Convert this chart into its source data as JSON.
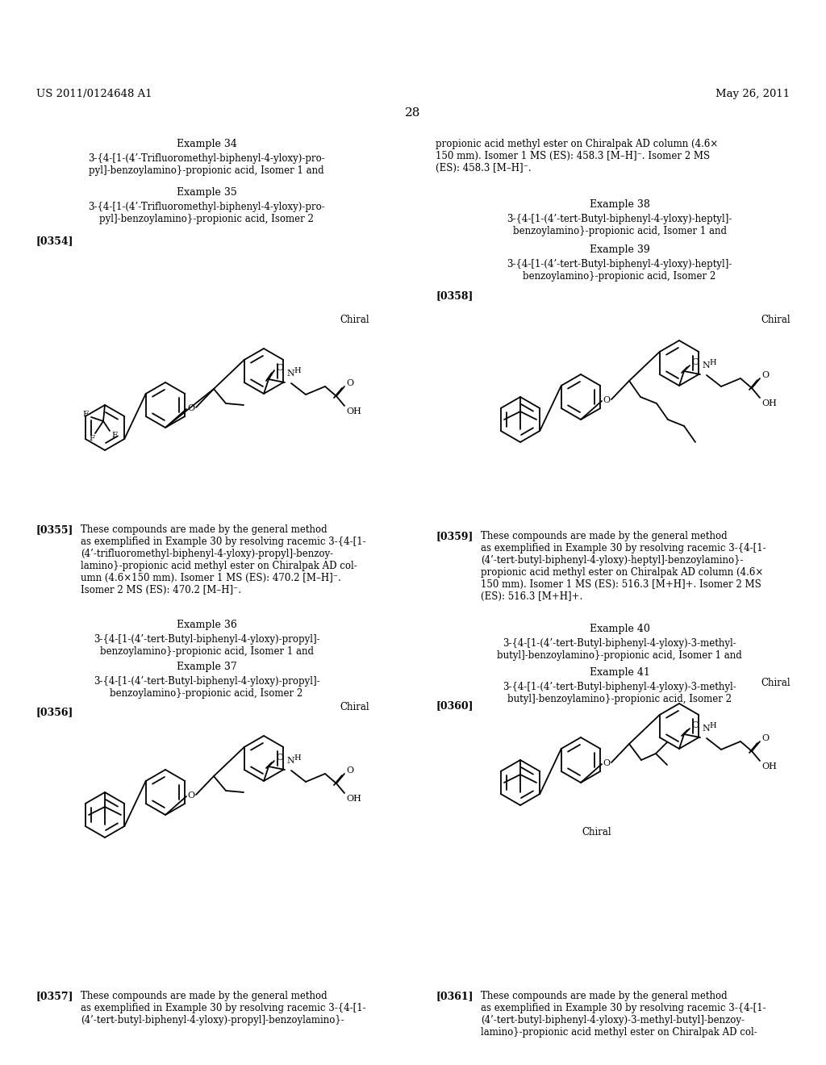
{
  "bg_color": "#ffffff",
  "header_left": "US 2011/0124648 A1",
  "header_right": "May 26, 2011",
  "page_number": "28",
  "left_col": {
    "example34_title": "Example 34",
    "example34_text": "3-{4-[1-(4’-Trifluoromethyl-biphenyl-4-yloxy)-pro-\npyl]-benzoylamino}-propionic acid, Isomer 1 and",
    "example35_title": "Example 35",
    "example35_text": "3-{4-[1-(4’-Trifluoromethyl-biphenyl-4-yloxy)-pro-\npyl]-benzoylamino}-propionic acid, Isomer 2",
    "ref0354": "[0354]",
    "chiral1": "Chiral",
    "para0355_label": "[0355]",
    "para0355_text": "These compounds are made by the general method\nas exemplified in Example 30 by resolving racemic 3-{4-[1-\n(4’-trifluoromethyl-biphenyl-4-yloxy)-propyl]-benzoy-\nlamino}-propionic acid methyl ester on Chiralpak AD col-\numn (4.6×150 mm). Isomer 1 MS (ES): 470.2 [M–H]⁻.\nIsomer 2 MS (ES): 470.2 [M–H]⁻.",
    "example36_title": "Example 36",
    "example36_text": "3-{4-[1-(4’-tert-Butyl-biphenyl-4-yloxy)-propyl]-\nbenzoylamino}-propionic acid, Isomer 1 and",
    "example37_title": "Example 37",
    "example37_text": "3-{4-[1-(4’-tert-Butyl-biphenyl-4-yloxy)-propyl]-\nbenzoylamino}-propionic acid, Isomer 2",
    "ref0356": "[0356]",
    "chiral2": "Chiral",
    "para0357_label": "[0357]",
    "para0357_text": "These compounds are made by the general method\nas exemplified in Example 30 by resolving racemic 3-{4-[1-\n(4’-tert-butyl-biphenyl-4-yloxy)-propyl]-benzoylamino}-"
  },
  "right_col": {
    "para_top_text": "propionic acid methyl ester on Chiralpak AD column (4.6×\n150 mm). Isomer 1 MS (ES): 458.3 [M–H]⁻. Isomer 2 MS\n(ES): 458.3 [M–H]⁻.",
    "example38_title": "Example 38",
    "example38_text": "3-{4-[1-(4’-tert-Butyl-biphenyl-4-yloxy)-heptyl]-\nbenzoylamino}-propionic acid, Isomer 1 and",
    "example39_title": "Example 39",
    "example39_text": "3-{4-[1-(4’-tert-Butyl-biphenyl-4-yloxy)-heptyl]-\nbenzoylamino}-propionic acid, Isomer 2",
    "ref0358": "[0358]",
    "chiral3": "Chiral",
    "para0359_label": "[0359]",
    "para0359_text": "These compounds are made by the general method\nas exemplified in Example 30 by resolving racemic 3-{4-[1-\n(4’-tert-butyl-biphenyl-4-yloxy)-heptyl]-benzoylamino}-\npropionic acid methyl ester on Chiralpak AD column (4.6×\n150 mm). Isomer 1 MS (ES): 516.3 [M+H]+. Isomer 2 MS\n(ES): 516.3 [M+H]+.",
    "example40_title": "Example 40",
    "example40_text": "3-{4-[1-(4’-tert-Butyl-biphenyl-4-yloxy)-3-methyl-\nbutyl]-benzoylamino}-propionic acid, Isomer 1 and",
    "example41_title": "Example 41",
    "example41_text": "3-{4-[1-(4’-tert-Butyl-biphenyl-4-yloxy)-3-methyl-\nbutyl]-benzoylamino}-propionic acid, Isomer 2",
    "ref0360": "[0360]",
    "chiral4": "Chiral",
    "para0361_label": "[0361]",
    "para0361_text": "These compounds are made by the general method\nas exemplified in Example 30 by resolving racemic 3-{4-[1-\n(4’-tert-butyl-biphenyl-4-yloxy)-3-methyl-butyl]-benzoy-\nlamino}-propionic acid methyl ester on Chiralpak AD col-"
  },
  "font_size_header": 9.5,
  "font_size_body": 8.5,
  "font_size_example_title": 9.0,
  "font_size_page": 11.0,
  "font_size_ref": 9.0,
  "font_size_chiral": 8.5
}
